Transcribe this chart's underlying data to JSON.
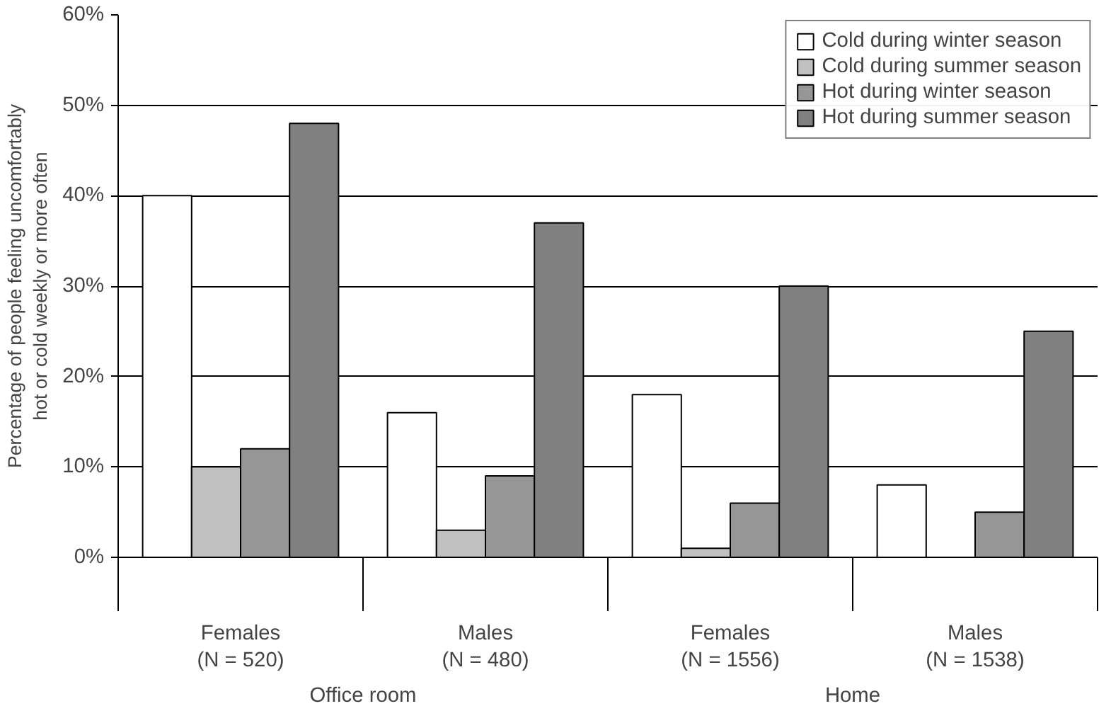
{
  "chart_data": {
    "type": "bar",
    "ylabel": "Percentage of people feeling uncomfortably\nhot or cold weekly or more often",
    "categories": [
      "Females\n(N = 520)",
      "Males\n(N = 480)",
      "Females\n(N = 1556)",
      "Males\n(N = 1538)"
    ],
    "annotations": [
      "Office room",
      "Home"
    ],
    "series": [
      {
        "name": "Cold during winter season",
        "color": "#ffffff",
        "values": [
          40,
          16,
          18,
          8
        ]
      },
      {
        "name": "Cold during summer season",
        "color": "#c0c0c0",
        "values": [
          10,
          3,
          1,
          null
        ]
      },
      {
        "name": "Hot during winter season",
        "color": "#969696",
        "values": [
          12,
          9,
          6,
          5
        ]
      },
      {
        "name": "Hot during summer season",
        "color": "#808080",
        "values": [
          48,
          37,
          30,
          25
        ]
      }
    ],
    "ylim": [
      0,
      60
    ],
    "yticks": [
      {
        "value": 0,
        "label": "0%"
      },
      {
        "value": 10,
        "label": "10%"
      },
      {
        "value": 20,
        "label": "20%"
      },
      {
        "value": 30,
        "label": "30%"
      },
      {
        "value": 40,
        "label": "40%"
      },
      {
        "value": 50,
        "label": "50%"
      },
      {
        "value": 60,
        "label": "60%"
      }
    ],
    "grid": "y",
    "legend": "top right"
  }
}
